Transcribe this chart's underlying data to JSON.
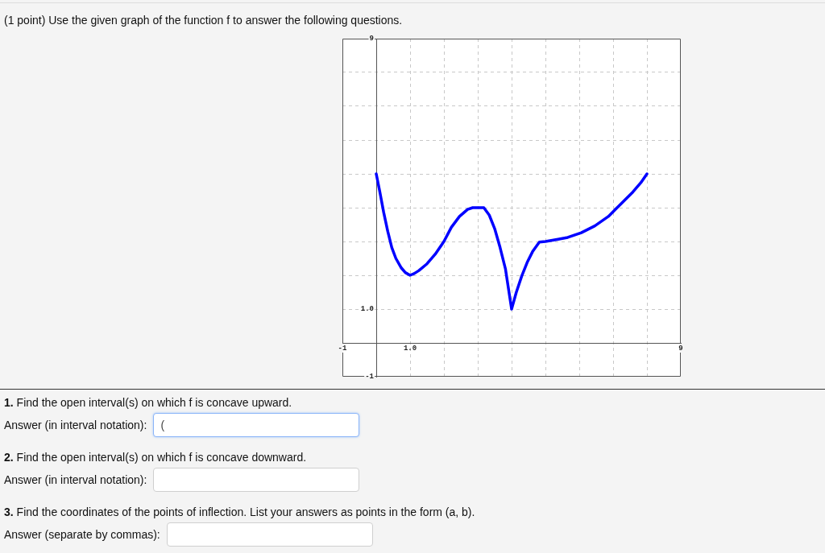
{
  "chart_data": {
    "type": "line",
    "title": "(1 point) Use the given graph of the function f to answer the following questions.",
    "annotations": [
      "1. Find the open interval(s) on which f is concave upward.",
      "Answer (in interval notation):",
      "(",
      "2. Find the open interval(s) on which f is concave downward.",
      "Answer (in interval notation):",
      "3. Find the coordinates of the points of inflection. List your answers as points in the form (a, b).",
      "Answer (separate by commas):"
    ],
    "x": [
      0,
      0.1,
      0.22,
      0.34,
      0.46,
      0.58,
      0.74,
      0.86,
      1,
      1.12,
      1.26,
      1.5,
      1.74,
      2,
      2.22,
      2.46,
      2.7,
      2.85,
      3,
      3.18,
      3.34,
      3.5,
      3.66,
      3.82,
      4,
      4.14,
      4.3,
      4.46,
      4.62,
      4.82,
      5,
      5.34,
      5.66,
      6.06,
      6.46,
      6.86,
      7.1,
      7.34,
      7.58,
      7.82,
      8
    ],
    "values": [
      5,
      4.5,
      3.86,
      3.3,
      2.82,
      2.5,
      2.22,
      2.08,
      2,
      2.05,
      2.14,
      2.34,
      2.62,
      3,
      3.42,
      3.74,
      3.95,
      4,
      4,
      4,
      3.78,
      3.38,
      2.82,
      2.18,
      1,
      1.5,
      1.98,
      2.38,
      2.7,
      2.98,
      3,
      3.06,
      3.12,
      3.26,
      3.46,
      3.74,
      3.98,
      4.22,
      4.46,
      4.74,
      5
    ],
    "color": "#0000ff",
    "xlim": [
      -1,
      9
    ],
    "ylim": [
      -1,
      9
    ],
    "xticks": [
      -1,
      {
        "value": 0,
        "label": null
      },
      {
        "value": 1,
        "label": "1.0"
      },
      {
        "value": 2,
        "label": null
      },
      {
        "value": 3,
        "label": null
      },
      {
        "value": 4,
        "label": null
      },
      {
        "value": 5,
        "label": null
      },
      {
        "value": 6,
        "label": null
      },
      {
        "value": 7,
        "label": null
      },
      {
        "value": 8,
        "label": null
      },
      9
    ],
    "yticks": [
      -1,
      {
        "value": 0,
        "label": null
      },
      {
        "value": 1,
        "label": "1.0"
      },
      {
        "value": 2,
        "label": null
      },
      {
        "value": 3,
        "label": null
      },
      {
        "value": 4,
        "label": null
      },
      {
        "value": 5,
        "label": null
      },
      {
        "value": 6,
        "label": null
      },
      {
        "value": 7,
        "label": null
      },
      {
        "value": 8,
        "label": null
      },
      9
    ],
    "grid": true,
    "marker": "none",
    "line_style": "solid"
  }
}
